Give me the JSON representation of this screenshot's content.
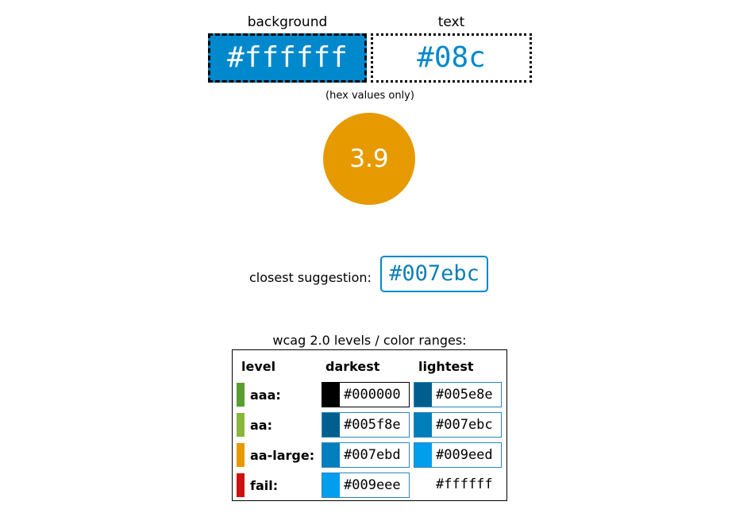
{
  "inputs": {
    "background_label": "background",
    "background_value": "#ffffff",
    "text_label": "text",
    "text_value": "#08c",
    "hint": "(hex values only)"
  },
  "result": {
    "ratio": "3.9",
    "ratio_color": "#e69a00"
  },
  "suggestion": {
    "label": "closest suggestion:",
    "value": "#007ebc"
  },
  "levels": {
    "title": "wcag 2.0 levels / color ranges:",
    "headers": {
      "level": "level",
      "darkest": "darkest",
      "lightest": "lightest"
    },
    "rows": [
      {
        "name": "aaa:",
        "bar_color": "#5a9e2f",
        "darkest": "#000000",
        "darkest_swatch": "#000000",
        "lightest": "#005e8e",
        "lightest_swatch": "#005e8e"
      },
      {
        "name": "aa:",
        "bar_color": "#8ab63c",
        "darkest": "#005f8e",
        "darkest_swatch": "#005f8e",
        "lightest": "#007ebc",
        "lightest_swatch": "#007ebc"
      },
      {
        "name": "aa-large:",
        "bar_color": "#e69a00",
        "darkest": "#007ebd",
        "darkest_swatch": "#007ebd",
        "lightest": "#009eed",
        "lightest_swatch": "#009eed"
      },
      {
        "name": "fail:",
        "bar_color": "#cc1111",
        "darkest": "#009eee",
        "darkest_swatch": "#009eee",
        "lightest": "#ffffff",
        "lightest_swatch": "#ffffff"
      }
    ]
  }
}
